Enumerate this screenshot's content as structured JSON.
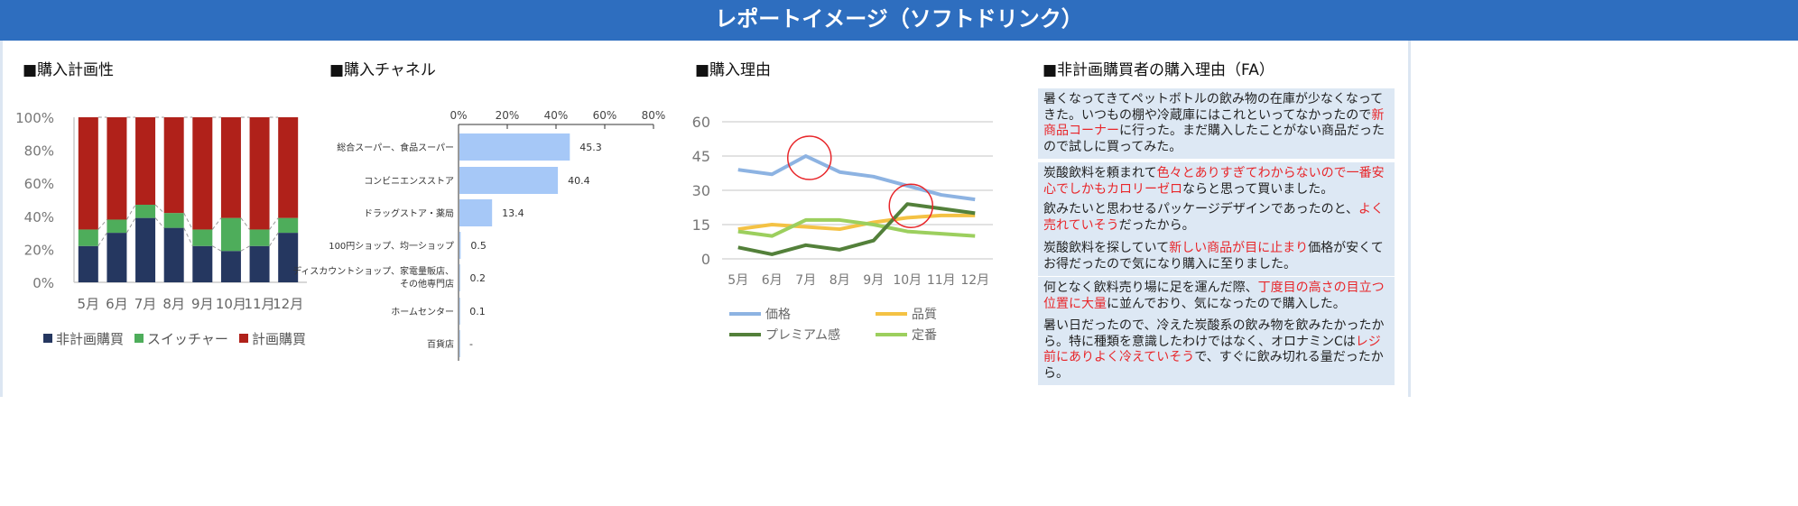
{
  "title": "レポートイメージ（ソフトドリンク）",
  "sections": [
    "■購入計画性",
    "■購入チャネル",
    "■購入理由",
    "■非計画購買者の購入理由（FA）"
  ],
  "colors": {
    "title_bar": "#2E6EBF",
    "non_planned": "#253760",
    "switcher": "#4EAD5B",
    "planned": "#B0211A",
    "channel_bar": "#A6C8F7",
    "price": "#8DB3E2",
    "quality": "#F4C244",
    "premium": "#53803A",
    "standard": "#9CCF5E",
    "circle": "#E8262A"
  },
  "chart_data": [
    {
      "type": "bar",
      "stacked": true,
      "title": "■購入計画性",
      "categories": [
        "5月",
        "6月",
        "7月",
        "8月",
        "9月",
        "10月",
        "11月",
        "12月"
      ],
      "yticks": [
        "0%",
        "20%",
        "40%",
        "60%",
        "80%",
        "100%"
      ],
      "ylim": [
        0,
        100
      ],
      "series": [
        {
          "name": "非計画購買",
          "values": [
            22,
            30,
            39,
            33,
            22,
            19,
            22,
            30
          ]
        },
        {
          "name": "スイッチャー",
          "values": [
            10,
            8,
            8,
            9,
            10,
            20,
            10,
            9
          ]
        },
        {
          "name": "計画購買",
          "values": [
            68,
            62,
            53,
            58,
            68,
            61,
            68,
            61
          ]
        }
      ],
      "legend": "bottom"
    },
    {
      "type": "bar",
      "orientation": "horizontal",
      "title": "■購入チャネル",
      "categories": [
        "総合スーパー、食品スーパー",
        "コンビニエンスストア",
        "ドラッグストア・薬局",
        "100円ショップ、均一ショップ",
        "ディスカウントショップ、家電量販店、その他専門店",
        "ホームセンター",
        "百貨店"
      ],
      "values": [
        45.3,
        40.4,
        13.4,
        0.5,
        0.2,
        0.1,
        null
      ],
      "labels": [
        "45.3",
        "40.4",
        "13.4",
        "0.5",
        "0.2",
        "0.1",
        "-"
      ],
      "xticks": [
        "0%",
        "20%",
        "40%",
        "60%",
        "80%"
      ],
      "xlim": [
        0,
        80
      ]
    },
    {
      "type": "line",
      "title": "■購入理由",
      "categories": [
        "5月",
        "6月",
        "7月",
        "8月",
        "9月",
        "10月",
        "11月",
        "12月"
      ],
      "yticks": [
        "0",
        "15",
        "30",
        "45",
        "60"
      ],
      "ylim": [
        0,
        60
      ],
      "series": [
        {
          "name": "価格",
          "values": [
            39,
            37,
            45,
            38,
            36,
            32,
            28,
            26
          ]
        },
        {
          "name": "品質",
          "values": [
            13,
            15,
            14,
            13,
            16,
            18,
            19,
            19
          ]
        },
        {
          "name": "プレミアム感",
          "values": [
            5,
            2,
            6,
            4,
            8,
            24,
            22,
            20
          ]
        },
        {
          "name": "定番",
          "values": [
            12,
            10,
            17,
            17,
            15,
            12,
            11,
            10
          ]
        }
      ],
      "annotations": [
        {
          "type": "circle",
          "series": "価格",
          "category": "7月"
        },
        {
          "type": "circle",
          "series": "プレミアム感",
          "category": "10月"
        }
      ],
      "legend": "bottom"
    }
  ],
  "fa_comments": [
    [
      {
        "t": "暑くなってきてペットボトルの飲み物の在庫が少なくなってきた。いつもの棚や冷蔵庫にはこれといってなかったので"
      },
      {
        "t": "新商品コーナー",
        "r": true
      },
      {
        "t": "に行った。まだ購入したことがない商品だったので試しに買ってみた。"
      }
    ],
    [
      {
        "t": "炭酸飲料を頼まれて"
      },
      {
        "t": "色々とありすぎてわからないので一番安心でしかもカロリーゼロ",
        "r": true
      },
      {
        "t": "ならと思って買いました。"
      }
    ],
    [
      {
        "t": "飲みたいと思わせるパッケージデザインであったのと、"
      },
      {
        "t": "よく売れていそう",
        "r": true
      },
      {
        "t": "だったから。"
      }
    ],
    [
      {
        "t": "炭酸飲料を探していて"
      },
      {
        "t": "新しい商品が目に止まり",
        "r": true
      },
      {
        "t": "価格が安くてお得だったので気になり購入に至りました。"
      }
    ],
    [
      {
        "t": "何となく飲料売り場に足を運んだ際、"
      },
      {
        "t": "丁度目の高さの目立つ位置に大量",
        "r": true
      },
      {
        "t": "に並んでおり、気になったので購入した。"
      }
    ],
    [
      {
        "t": "暑い日だったので、冷えた炭酸系の飲み物を飲みたかったから。特に種類を意識したわけではなく、オロナミンCは"
      },
      {
        "t": "レジ前にありよく冷えていそう",
        "r": true
      },
      {
        "t": "で、すぐに飲み切れる量だったから。"
      }
    ]
  ]
}
